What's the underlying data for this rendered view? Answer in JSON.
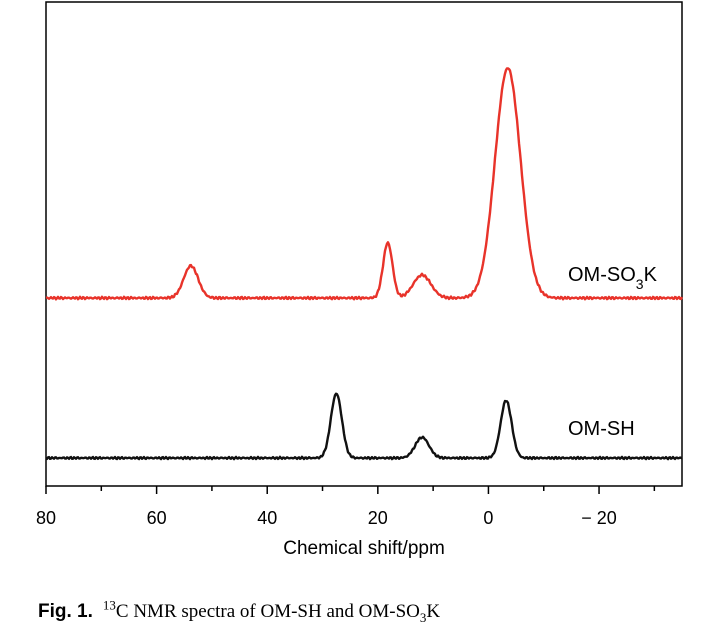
{
  "chart_data": {
    "type": "line",
    "xlabel": "Chemical shift/ppm",
    "ylabel": "",
    "xlim": [
      80,
      -35
    ],
    "x_reversed": true,
    "x_ticks": [
      80,
      60,
      40,
      20,
      0,
      -20
    ],
    "x_tick_labels": [
      "80",
      "60",
      "40",
      "20",
      "0",
      "− 20"
    ],
    "grid": false,
    "series": [
      {
        "name_parts": {
          "pre": "OM-SO",
          "sub": "3",
          "post": "K"
        },
        "color": "#e8332a",
        "peaks_ppm_height": [
          [
            -3.5,
            1.0
          ],
          [
            18.2,
            0.24
          ],
          [
            12.0,
            0.1
          ],
          [
            53.8,
            0.14
          ]
        ]
      },
      {
        "name": "OM-SH",
        "color": "#111111",
        "peaks_ppm_height": [
          [
            27.5,
            0.28
          ],
          [
            -3.2,
            0.25
          ],
          [
            12.0,
            0.09
          ]
        ]
      }
    ]
  },
  "caption": {
    "number": "Fig. 1.",
    "sup": "13",
    "text_a": "C NMR spectra of OM-SH and OM-SO",
    "sub": "3",
    "text_b": "K"
  }
}
